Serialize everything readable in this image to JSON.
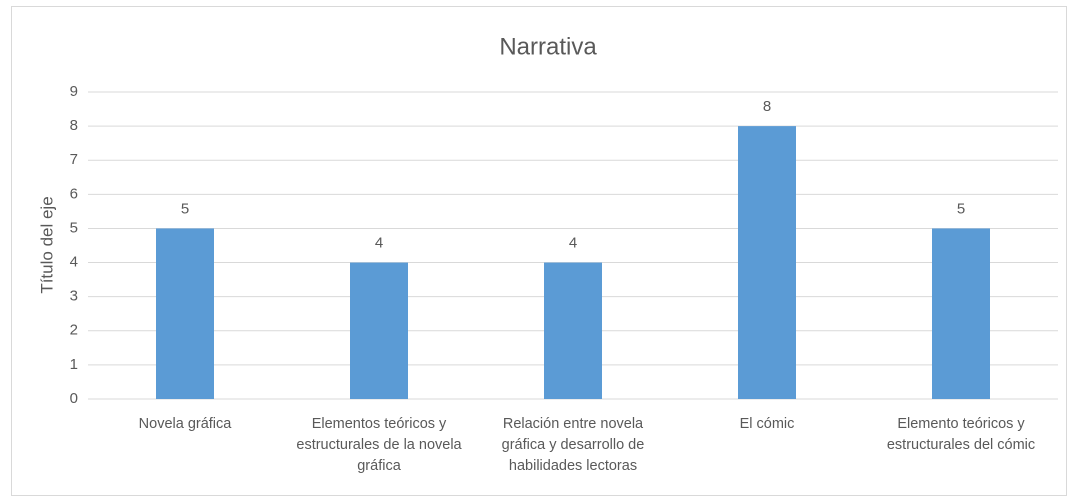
{
  "chart_data": {
    "type": "bar",
    "title": "Narrativa",
    "y_label": "Título del eje",
    "categories": [
      "Novela gráfica",
      "Elementos teóricos y estructurales de la novela gráfica",
      "Relación entre novela gráfica y desarrollo de habilidades lectoras",
      "El cómic",
      "Elemento teóricos y estructurales del cómic"
    ],
    "values": [
      5,
      4,
      4,
      8,
      5
    ],
    "color": "#5b9bd5",
    "ylim": [
      0,
      9
    ],
    "yticks": [
      0,
      1,
      2,
      3,
      4,
      5,
      6,
      7,
      8,
      9
    ],
    "grid": true
  }
}
